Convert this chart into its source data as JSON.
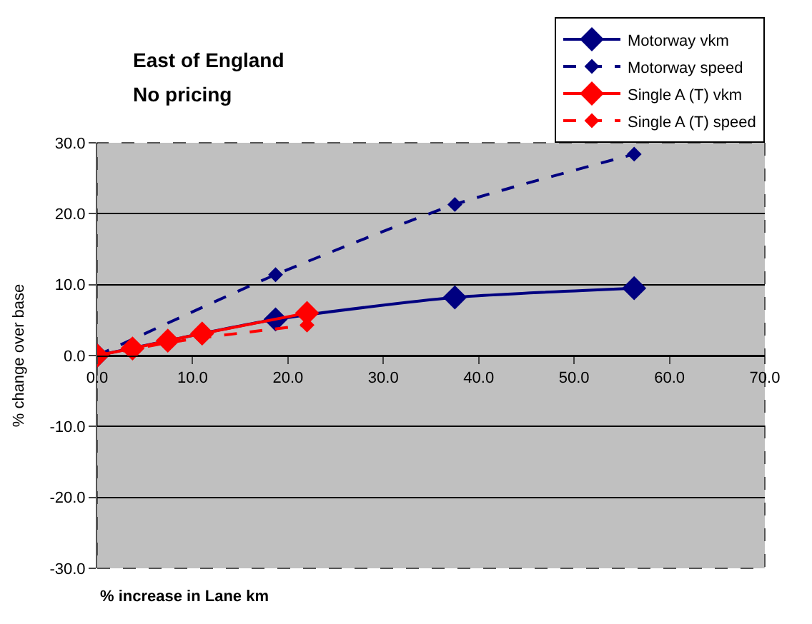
{
  "chart_data": {
    "type": "line",
    "title": "East of England",
    "subtitle": "No pricing",
    "xlabel": "% increase in Lane km",
    "ylabel": "% change over base",
    "xlim": [
      0,
      70
    ],
    "xticks": [
      {
        "value": 0,
        "label": "0.0"
      },
      {
        "value": 10,
        "label": "10.0"
      },
      {
        "value": 20,
        "label": "20.0"
      },
      {
        "value": 30,
        "label": "30.0"
      },
      {
        "value": 40,
        "label": "40.0"
      },
      {
        "value": 50,
        "label": "50.0"
      },
      {
        "value": 60,
        "label": "60.0"
      },
      {
        "value": 70,
        "label": "70.0"
      }
    ],
    "ylim": [
      -30,
      30
    ],
    "yticks": [
      {
        "value": -30,
        "label": "-30.0"
      },
      {
        "value": -20,
        "label": "-20.0"
      },
      {
        "value": -10,
        "label": "-10.0"
      },
      {
        "value": 0,
        "label": "0.0"
      },
      {
        "value": 10,
        "label": "10.0"
      },
      {
        "value": 20,
        "label": "20.0"
      },
      {
        "value": 30,
        "label": "30.0"
      }
    ],
    "grid": "y",
    "legend": "top right",
    "marker": "diamond",
    "series": [
      {
        "name": "Motorway vkm",
        "color": "#000080",
        "line_style": "solid",
        "x": [
          0,
          18.7,
          37.5,
          56.3
        ],
        "values": [
          0,
          5.1,
          8.2,
          9.5
        ]
      },
      {
        "name": "Motorway speed",
        "color": "#000080",
        "line_style": "dashed",
        "x": [
          0,
          18.7,
          37.5,
          56.3
        ],
        "values": [
          0,
          11.4,
          21.3,
          28.4
        ]
      },
      {
        "name": "Single A (T) vkm",
        "color": "#ff0000",
        "line_style": "solid",
        "x": [
          0,
          3.7,
          7.4,
          11,
          22
        ],
        "values": [
          0,
          1.0,
          2.1,
          3.1,
          6.0
        ]
      },
      {
        "name": "Single A (T) speed",
        "color": "#ff0000",
        "line_style": "dashed",
        "x": [
          0,
          3.7,
          7.4,
          11,
          22
        ],
        "values": [
          0,
          0.9,
          1.8,
          2.5,
          4.3
        ]
      }
    ]
  }
}
